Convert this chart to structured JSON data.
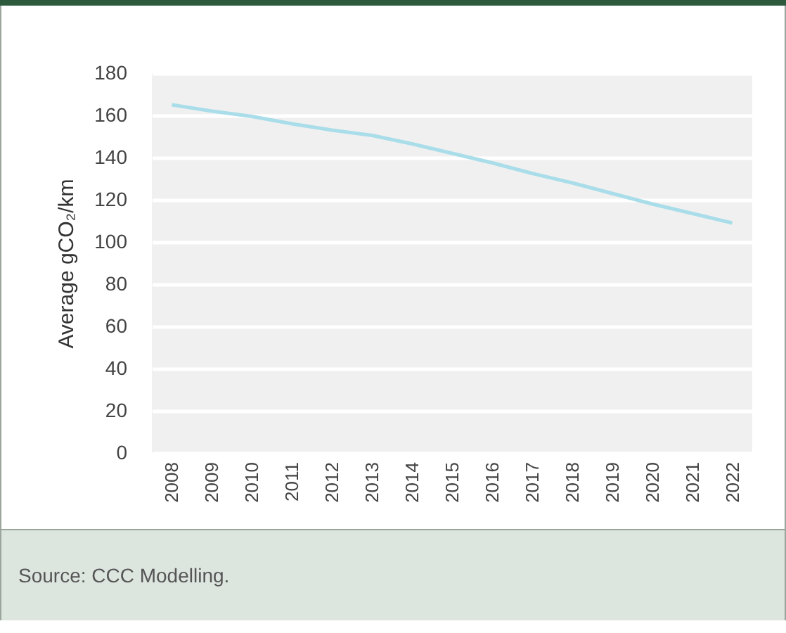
{
  "chart_data": {
    "type": "line",
    "ylabel": "Average gCO₂/km",
    "categories": [
      "2008",
      "2009",
      "2010",
      "2011",
      "2012",
      "2013",
      "2014",
      "2015",
      "2016",
      "2017",
      "2018",
      "2019",
      "2020",
      "2021",
      "2022"
    ],
    "series": [
      {
        "color": "#a8dde9",
        "values": [
          165,
          162,
          159.5,
          156,
          153,
          150.5,
          146.5,
          142,
          137.5,
          132.5,
          128,
          123,
          118,
          113.5,
          109
        ]
      }
    ],
    "ylim": [
      0,
      180
    ],
    "yticks": [
      0,
      20,
      40,
      60,
      80,
      100,
      120,
      140,
      160,
      180
    ],
    "grid": "y",
    "marker": "none",
    "line_style": "solid",
    "annotations": [
      "Source: CCC Modelling."
    ]
  }
}
